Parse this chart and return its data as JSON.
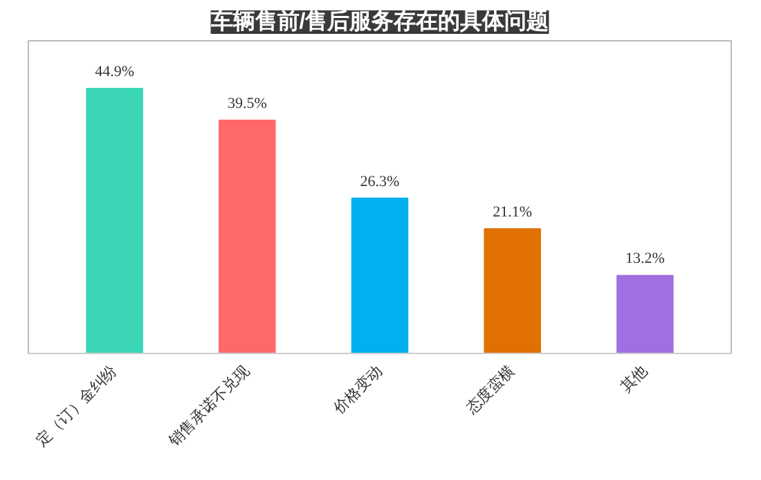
{
  "chart_data": {
    "type": "bar",
    "title": "车辆售前/售后服务存在的具体问题",
    "categories": [
      "定（订）金纠纷",
      "销售承诺不兑现",
      "价格变动",
      "态度蛮横",
      "其他"
    ],
    "values": [
      44.9,
      39.5,
      26.3,
      21.1,
      13.2
    ],
    "colors": [
      "#3ad6b6",
      "#ff6868",
      "#00b0f0",
      "#e07000",
      "#a06fe0"
    ],
    "value_labels": [
      "44.9%",
      "39.5%",
      "26.3%",
      "21.1%",
      "13.2%"
    ]
  }
}
